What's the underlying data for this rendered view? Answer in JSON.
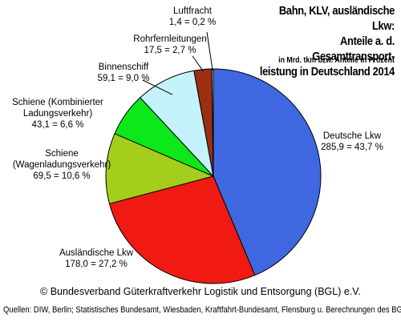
{
  "title_lines": [
    "Bahn, KLV, ausländische Lkw:",
    "Anteile a. d. Gesamttransport-",
    "leistung in Deutschland 2014"
  ],
  "subtitle": "in Mrd. tkm bzw. Anteile in Prozent",
  "copyright": "© Bundesverband Güterkraftverkehr Logistik und Entsorgung (BGL) e.V.",
  "sources": "Quellen: DIW, Berlin; Statistisches Bundesamt, Wiesbaden, Kraftfahrt-Bundesamt, Flensburg u. Berechnungen des BGL",
  "chart_data": {
    "type": "pie",
    "slices": [
      {
        "name": "Deutsche Lkw",
        "name_lines": [
          "Deutsche Lkw"
        ],
        "value": 285.9,
        "percent": 43.7,
        "value_label": "285,9 = 43,7 %",
        "color": "#3f68e0"
      },
      {
        "name": "Ausländische Lkw",
        "name_lines": [
          "Ausländische Lkw"
        ],
        "value": 178.0,
        "percent": 27.2,
        "value_label": "178,0 = 27,2 %",
        "color": "#f01a12"
      },
      {
        "name": "Schiene (Wagenladungsverkehr)",
        "name_lines": [
          "Schiene",
          "(Wagenladungsverkehr)"
        ],
        "value": 69.5,
        "percent": 10.6,
        "value_label": "69,5 = 10,6 %",
        "color": "#a4ce1b"
      },
      {
        "name": "Schiene (Kombinierter Ladungsverkehr)",
        "name_lines": [
          "Schiene (Kombinierter",
          "Ladungsverkehr)"
        ],
        "value": 43.1,
        "percent": 6.6,
        "value_label": "43,1 = 6,6 %",
        "color": "#0ce81a"
      },
      {
        "name": "Binnenschiff",
        "name_lines": [
          "Binnenschiff"
        ],
        "value": 59.1,
        "percent": 9.0,
        "value_label": "59,1 = 9,0 %",
        "color": "#c4f3fb"
      },
      {
        "name": "Rohrfernleitungen",
        "name_lines": [
          "Rohrfernleitungen"
        ],
        "value": 17.5,
        "percent": 2.7,
        "value_label": "17,5 = 2,7 %",
        "color": "#9a2f12"
      },
      {
        "name": "Luftfracht",
        "name_lines": [
          "Luftfracht"
        ],
        "value": 1.4,
        "percent": 0.2,
        "value_label": "1,4 = 0,2 %",
        "color": "#ffffff"
      }
    ]
  }
}
